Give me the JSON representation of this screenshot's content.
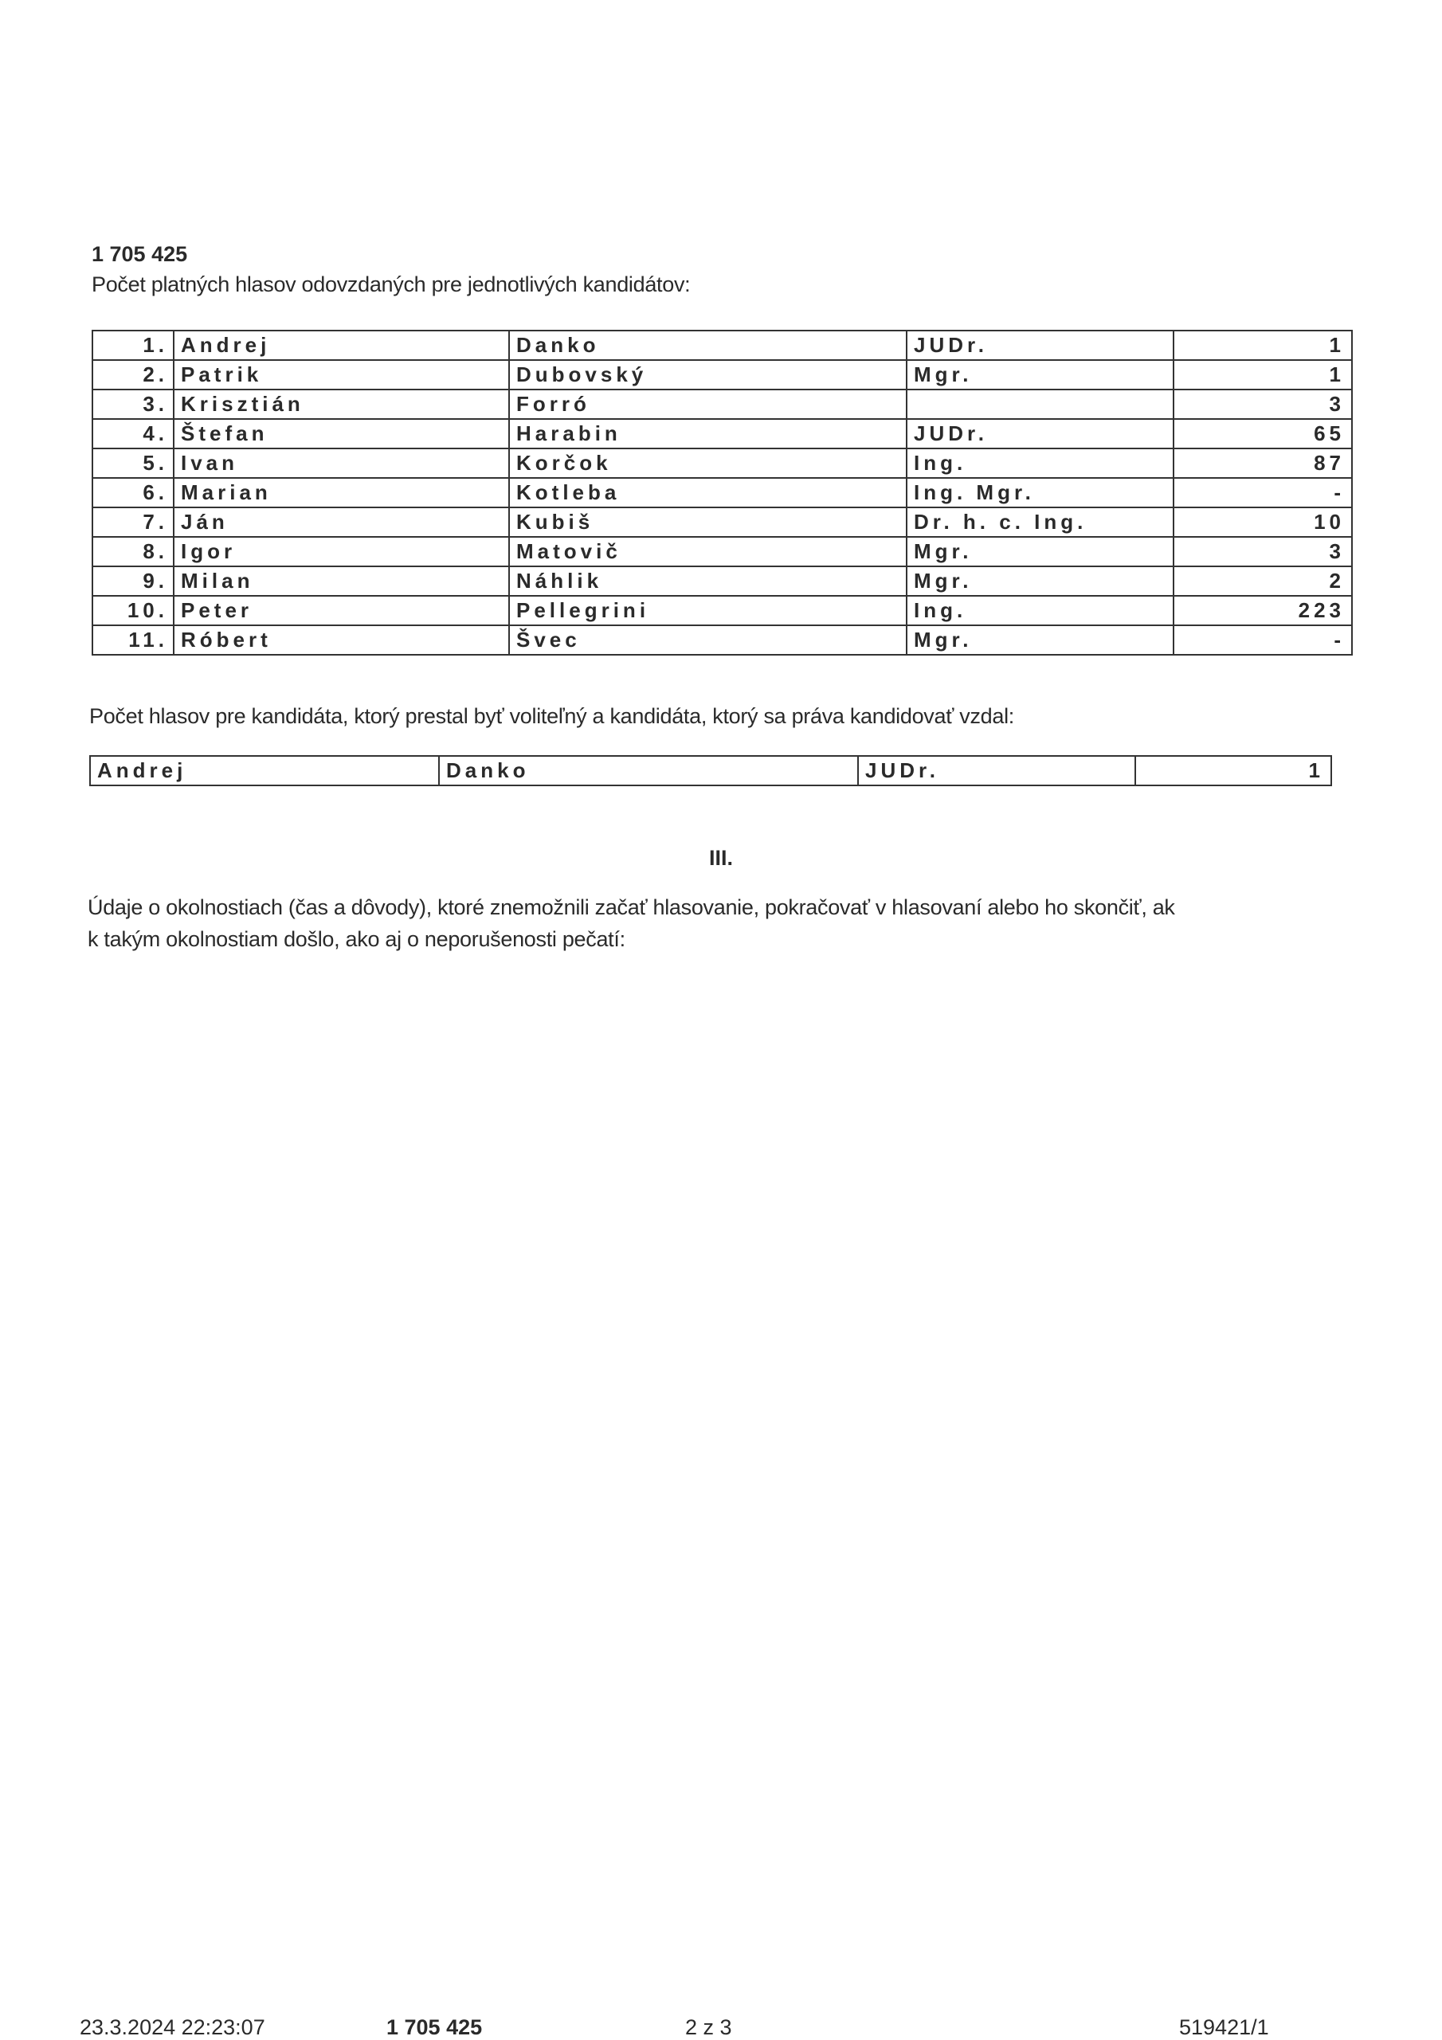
{
  "document_id": "1 705 425",
  "candidates_heading": "Počet platných hlasov odovzdaných pre jednotlivých kandidátov:",
  "candidates": [
    {
      "no": "1.",
      "first": "Andrej",
      "last": "Danko",
      "title": "JUDr.",
      "votes": "1"
    },
    {
      "no": "2.",
      "first": "Patrik",
      "last": "Dubovský",
      "title": "Mgr.",
      "votes": "1"
    },
    {
      "no": "3.",
      "first": "Krisztián",
      "last": "Forró",
      "title": "",
      "votes": "3"
    },
    {
      "no": "4.",
      "first": "Štefan",
      "last": "Harabin",
      "title": "JUDr.",
      "votes": "65"
    },
    {
      "no": "5.",
      "first": "Ivan",
      "last": "Korčok",
      "title": "Ing.",
      "votes": "87"
    },
    {
      "no": "6.",
      "first": "Marian",
      "last": "Kotleba",
      "title": "Ing. Mgr.",
      "votes": "-"
    },
    {
      "no": "7.",
      "first": "Ján",
      "last": "Kubiš",
      "title": "Dr. h. c. Ing.",
      "votes": "10"
    },
    {
      "no": "8.",
      "first": "Igor",
      "last": "Matovič",
      "title": "Mgr.",
      "votes": "3"
    },
    {
      "no": "9.",
      "first": "Milan",
      "last": "Náhlik",
      "title": "Mgr.",
      "votes": "2"
    },
    {
      "no": "10.",
      "first": "Peter",
      "last": "Pellegrini",
      "title": "Ing.",
      "votes": "223"
    },
    {
      "no": "11.",
      "first": "Róbert",
      "last": "Švec",
      "title": "Mgr.",
      "votes": "-"
    }
  ],
  "withdrawn_heading": "Počet hlasov pre kandidáta, ktorý prestal byť voliteľný a kandidáta, ktorý sa práva kandidovať vzdal:",
  "withdrawn": {
    "first": "Andrej",
    "last": "Danko",
    "title": "JUDr.",
    "votes": "1"
  },
  "section_number": "III.",
  "circumstances_line1": "Údaje o okolnostiach (čas a dôvody), ktoré znemožnili začať hlasovanie, pokračovať v hlasovaní alebo ho skončiť, ak",
  "circumstances_line2": "k takým okolnostiam došlo, ako aj o neporušenosti pečatí:",
  "footer": {
    "datetime": "23.3.2024 22:23:07",
    "doc_id": "1 705 425",
    "page": "2 z 3",
    "ref": "519421/1"
  }
}
